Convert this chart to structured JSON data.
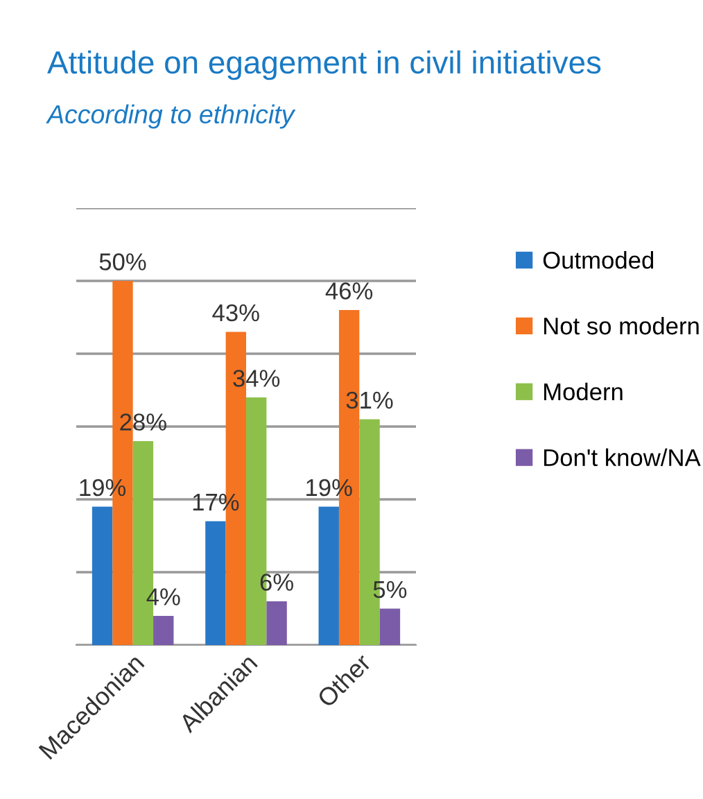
{
  "chart_data": {
    "type": "bar",
    "title": "Attitude on egagement in civil initiatives",
    "subtitle": "According to ethnicity",
    "categories": [
      "Macedonian",
      "Albanian",
      "Other"
    ],
    "series": [
      {
        "name": "Outmoded",
        "color": "#2878c8",
        "values": [
          19,
          17,
          19
        ],
        "value_labels": [
          "19%",
          "17%",
          "19%"
        ]
      },
      {
        "name": "Not so modern",
        "color": "#f47422",
        "values": [
          50,
          43,
          46
        ],
        "value_labels": [
          "50%",
          "43%",
          "46%"
        ]
      },
      {
        "name": "Modern",
        "color": "#8dc04b",
        "values": [
          28,
          34,
          31
        ],
        "value_labels": [
          "28%",
          "34%",
          "31%"
        ]
      },
      {
        "name": "Don't know/NA",
        "color": "#7b5ca8",
        "values": [
          4,
          6,
          5
        ],
        "value_labels": [
          "4%",
          "6%",
          "5%"
        ]
      }
    ],
    "ylim": [
      0,
      60
    ],
    "yticks": [
      {
        "value": 0,
        "label": null
      },
      {
        "value": 10,
        "label": null
      },
      {
        "value": 20,
        "label": null
      },
      {
        "value": 30,
        "label": null
      },
      {
        "value": 40,
        "label": null
      },
      {
        "value": 50,
        "label": null
      },
      {
        "value": 60,
        "label": null
      }
    ],
    "tick_labels": "x",
    "grid": "y",
    "legend": "right"
  }
}
